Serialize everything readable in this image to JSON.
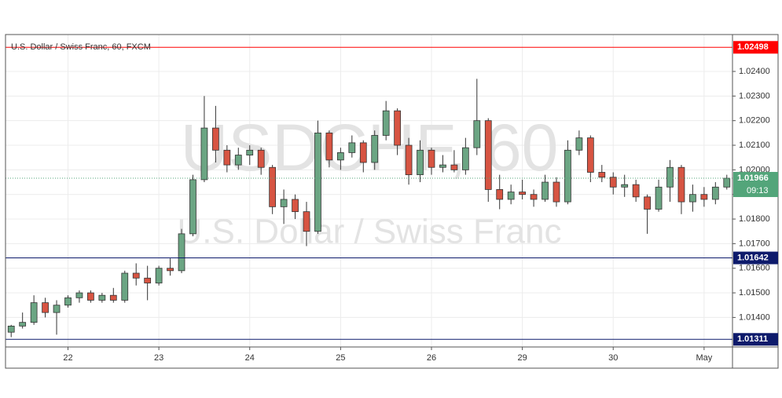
{
  "chart_data": {
    "type": "candlestick",
    "title": "U.S. Dollar / Swiss Franc, 60, FXCM",
    "watermark": "USDCHF, 60",
    "watermark_subtitle": "U.S. Dollar / Swiss Franc",
    "categories": [
      null,
      null,
      null,
      null,
      null,
      "22",
      null,
      null,
      null,
      null,
      null,
      null,
      null,
      "23",
      null,
      null,
      null,
      null,
      null,
      null,
      null,
      "24",
      null,
      null,
      null,
      null,
      null,
      null,
      null,
      "25",
      null,
      null,
      null,
      null,
      null,
      null,
      null,
      "26",
      null,
      null,
      null,
      null,
      null,
      null,
      null,
      "29",
      null,
      null,
      null,
      null,
      null,
      null,
      null,
      "30",
      null,
      null,
      null,
      null,
      null,
      null,
      null,
      "May",
      null,
      null
    ],
    "open": [
      1.0134,
      1.01365,
      1.0138,
      1.0146,
      1.0142,
      1.0145,
      1.0148,
      1.015,
      1.0147,
      1.0149,
      1.0147,
      1.0158,
      1.0156,
      1.0154,
      1.016,
      1.0159,
      1.0174,
      1.0196,
      1.0217,
      1.0208,
      1.0202,
      1.0206,
      1.0208,
      1.0201,
      1.0185,
      1.0188,
      1.0183,
      1.0175,
      1.0215,
      1.0204,
      1.0207,
      1.0211,
      1.0203,
      1.0214,
      1.0224,
      1.021,
      1.0198,
      1.0208,
      1.0201,
      1.0202,
      1.02,
      1.0209,
      1.022,
      1.0192,
      1.0188,
      1.0191,
      1.019,
      1.0188,
      1.0195,
      1.0187,
      1.0208,
      1.0213,
      1.0199,
      1.0197,
      1.0193,
      1.0194,
      1.0189,
      1.0184,
      1.0193,
      1.0201,
      1.0187,
      1.019,
      1.0188,
      1.0193
    ],
    "high": [
      1.0137,
      1.0142,
      1.0149,
      1.0148,
      1.0147,
      1.0149,
      1.0151,
      1.0151,
      1.015,
      1.0152,
      1.0159,
      1.0162,
      1.0161,
      1.0161,
      1.0164,
      1.0176,
      1.0198,
      1.023,
      1.0226,
      1.021,
      1.0209,
      1.021,
      1.0209,
      1.0202,
      1.0192,
      1.019,
      1.0187,
      1.022,
      1.0216,
      1.0209,
      1.0214,
      1.0212,
      1.0216,
      1.0228,
      1.0225,
      1.0213,
      1.0212,
      1.0209,
      1.0206,
      1.0208,
      1.0213,
      1.0237,
      1.0221,
      1.0198,
      1.0194,
      1.0196,
      1.0192,
      1.0198,
      1.0197,
      1.0212,
      1.0216,
      1.0214,
      1.0202,
      1.0199,
      1.0198,
      1.0196,
      1.019,
      1.0196,
      1.0204,
      1.0202,
      1.0194,
      1.0193,
      1.0195,
      1.0198
    ],
    "low": [
      1.0132,
      1.01355,
      1.0137,
      1.014,
      1.0133,
      1.0144,
      1.0146,
      1.0146,
      1.0146,
      1.0146,
      1.0146,
      1.0153,
      1.0147,
      1.0153,
      1.0157,
      1.0158,
      1.0173,
      1.0195,
      1.0203,
      1.0199,
      1.02,
      1.0202,
      1.0198,
      1.0182,
      1.0178,
      1.018,
      1.0169,
      1.0174,
      1.0201,
      1.02,
      1.0205,
      1.0199,
      1.02,
      1.0212,
      1.0206,
      1.0194,
      1.0195,
      1.0198,
      1.0199,
      1.0199,
      1.0198,
      1.0206,
      1.0187,
      1.0184,
      1.0186,
      1.0188,
      1.0185,
      1.0187,
      1.0185,
      1.0186,
      1.0206,
      1.0195,
      1.0195,
      1.019,
      1.0189,
      1.0187,
      1.0174,
      1.0183,
      1.0187,
      1.0182,
      1.0183,
      1.0185,
      1.0186,
      1.0192
    ],
    "close": [
      1.01365,
      1.0138,
      1.0146,
      1.0142,
      1.0145,
      1.0148,
      1.015,
      1.0147,
      1.0149,
      1.0147,
      1.0158,
      1.0156,
      1.0154,
      1.016,
      1.0159,
      1.0174,
      1.0196,
      1.0217,
      1.0208,
      1.0202,
      1.0206,
      1.0208,
      1.0201,
      1.0185,
      1.0188,
      1.0183,
      1.0175,
      1.0215,
      1.0204,
      1.0207,
      1.0211,
      1.0203,
      1.0214,
      1.0224,
      1.021,
      1.0198,
      1.0208,
      1.0201,
      1.0202,
      1.02,
      1.0209,
      1.022,
      1.0192,
      1.0188,
      1.0191,
      1.019,
      1.0188,
      1.0195,
      1.0187,
      1.0208,
      1.0213,
      1.0199,
      1.0197,
      1.0193,
      1.0194,
      1.0189,
      1.0184,
      1.0193,
      1.0201,
      1.0187,
      1.019,
      1.0188,
      1.0193,
      1.01966
    ],
    "up_color": "#6ba583",
    "down_color": "#d75442",
    "ylim": [
      1.0128,
      1.0255
    ],
    "yticks": [
      {
        "value": 1.014,
        "label": "1.01400"
      },
      {
        "value": 1.015,
        "label": "1.01500"
      },
      {
        "value": 1.016,
        "label": "1.01600"
      },
      {
        "value": 1.017,
        "label": "1.01700"
      },
      {
        "value": 1.018,
        "label": "1.01800"
      },
      {
        "value": 1.019,
        "label": "1.01900"
      },
      {
        "value": 1.02,
        "label": "1.02000"
      },
      {
        "value": 1.021,
        "label": "1.02100"
      },
      {
        "value": 1.022,
        "label": "1.02200"
      },
      {
        "value": 1.023,
        "label": "1.02300"
      },
      {
        "value": 1.024,
        "label": "1.02400"
      }
    ],
    "grid": true,
    "levels": [
      {
        "value": 1.02498,
        "color": "#ff0000"
      },
      {
        "value": 1.01642,
        "color": "#0d1a6b"
      },
      {
        "value": 1.01311,
        "color": "#0d1a6b"
      }
    ],
    "last_price": {
      "value": 1.01966,
      "color": "#53a57a",
      "countdown": "09:13"
    }
  }
}
